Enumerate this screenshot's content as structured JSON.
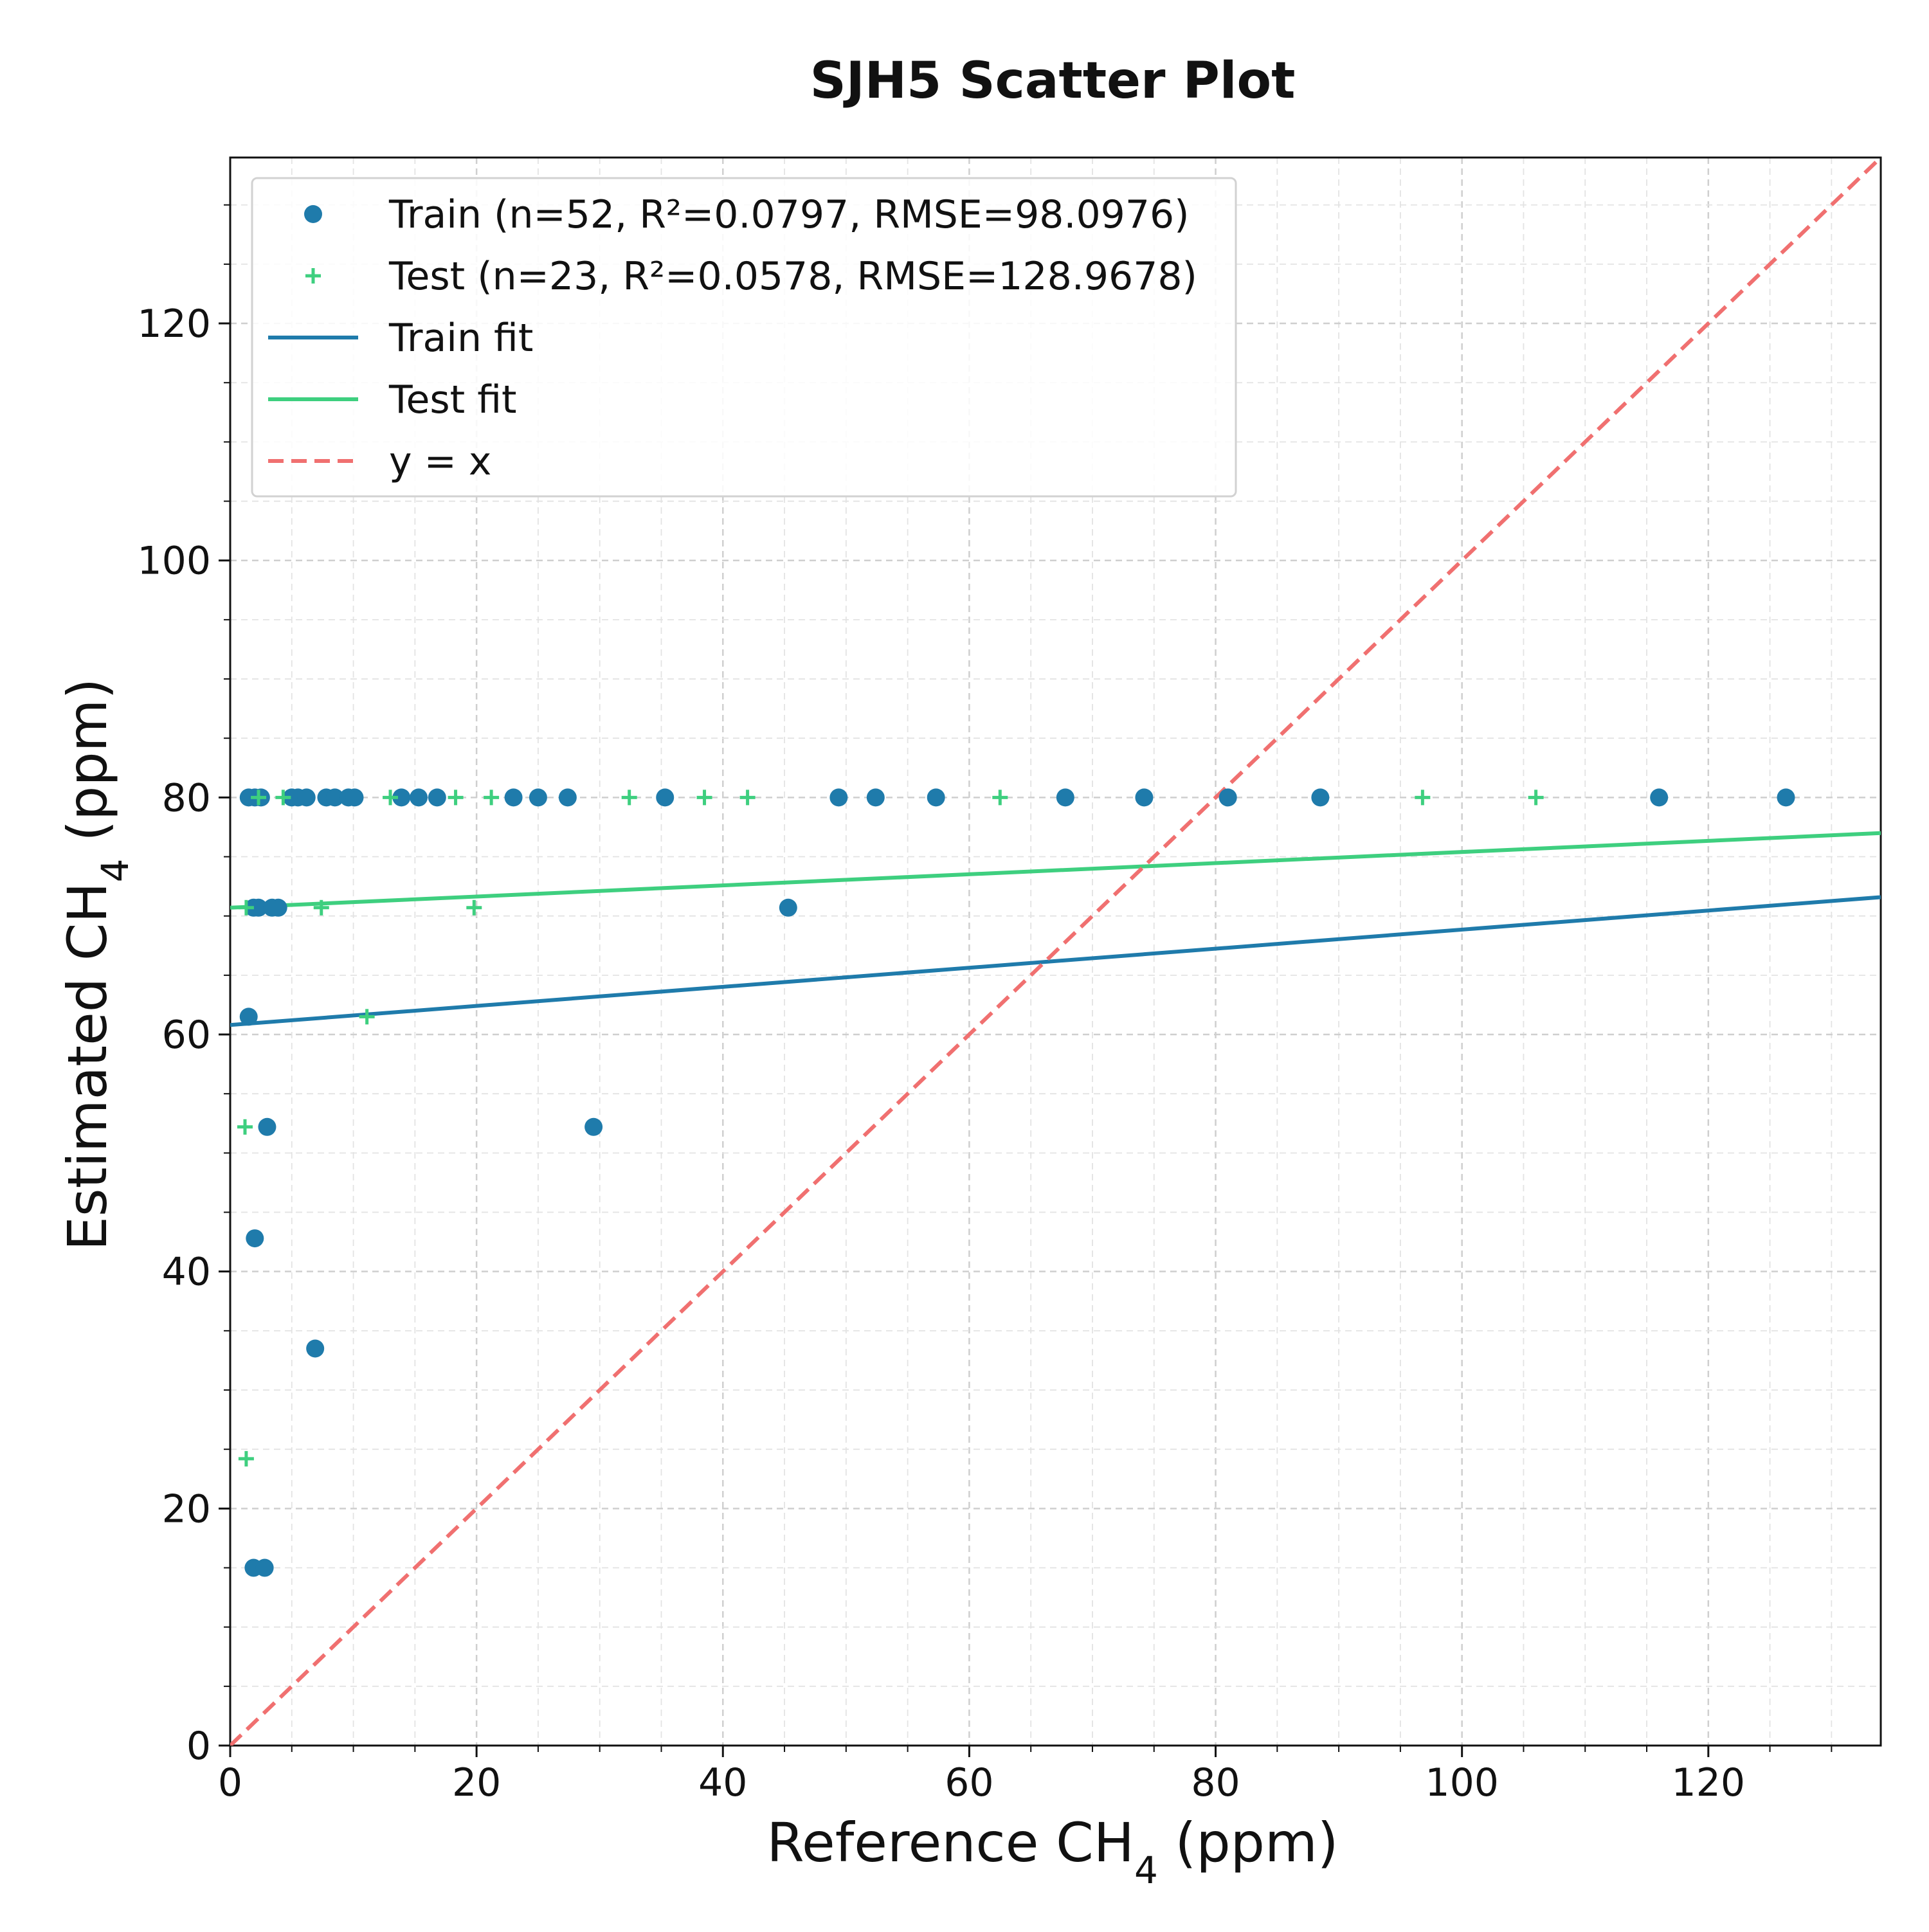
{
  "chart_data": {
    "type": "scatter",
    "title": "SJH5 Scatter Plot",
    "xlabel": {
      "main": "Reference CH",
      "sub": "4",
      "unit": " (ppm)"
    },
    "ylabel": {
      "main": "Estimated CH",
      "sub": "4",
      "unit": " (ppm)"
    },
    "xlim": [
      0,
      134
    ],
    "ylim": [
      0,
      134
    ],
    "x_ticks": [
      0,
      20,
      40,
      60,
      80,
      100,
      120
    ],
    "y_ticks": [
      0,
      20,
      40,
      60,
      80,
      100,
      120
    ],
    "grid": true,
    "legend_position": "top-left",
    "colors": {
      "train": "#1f7bab",
      "test": "#3ecf7f",
      "identity": "#f07070"
    },
    "series": [
      {
        "name": "Train (n=52, R²=0.0797, RMSE=98.0976)",
        "marker": "circle",
        "points": [
          [
            1.5,
            80
          ],
          [
            2.0,
            80
          ],
          [
            2.5,
            80
          ],
          [
            5.0,
            80
          ],
          [
            5.5,
            80
          ],
          [
            6.2,
            80
          ],
          [
            7.8,
            80
          ],
          [
            8.5,
            80
          ],
          [
            9.6,
            80
          ],
          [
            10.1,
            80
          ],
          [
            13.9,
            80
          ],
          [
            15.3,
            80
          ],
          [
            16.8,
            80
          ],
          [
            23.0,
            80
          ],
          [
            25.0,
            80
          ],
          [
            27.4,
            80
          ],
          [
            35.3,
            80
          ],
          [
            49.4,
            80
          ],
          [
            52.4,
            80
          ],
          [
            57.3,
            80
          ],
          [
            67.8,
            80
          ],
          [
            74.2,
            80
          ],
          [
            81.0,
            80
          ],
          [
            88.5,
            80
          ],
          [
            116.0,
            80
          ],
          [
            126.3,
            80
          ],
          [
            1.9,
            70.7
          ],
          [
            2.3,
            70.7
          ],
          [
            3.4,
            70.7
          ],
          [
            3.9,
            70.7
          ],
          [
            45.3,
            70.7
          ],
          [
            1.5,
            61.5
          ],
          [
            3.0,
            52.2
          ],
          [
            29.5,
            52.2
          ],
          [
            2.0,
            42.8
          ],
          [
            6.9,
            33.5
          ],
          [
            1.9,
            15
          ],
          [
            2.8,
            15
          ]
        ]
      },
      {
        "name": "Test (n=23, R²=0.0578, RMSE=128.9678)",
        "marker": "plus",
        "points": [
          [
            2.3,
            80
          ],
          [
            4.3,
            80
          ],
          [
            13.0,
            80
          ],
          [
            18.3,
            80
          ],
          [
            21.2,
            80
          ],
          [
            32.4,
            80
          ],
          [
            38.5,
            80
          ],
          [
            42.0,
            80
          ],
          [
            62.5,
            80
          ],
          [
            96.8,
            80
          ],
          [
            106.0,
            80
          ],
          [
            1.3,
            70.7
          ],
          [
            7.4,
            70.7
          ],
          [
            19.8,
            70.7
          ],
          [
            11.1,
            61.5
          ],
          [
            1.2,
            52.2
          ],
          [
            1.3,
            24.2
          ]
        ]
      }
    ],
    "fits": [
      {
        "name": "Train fit",
        "intercept": 60.8,
        "slope": 0.0805
      },
      {
        "name": "Test fit",
        "intercept": 70.7,
        "slope": 0.047
      }
    ],
    "identity_line": {
      "name": "y = x"
    }
  }
}
